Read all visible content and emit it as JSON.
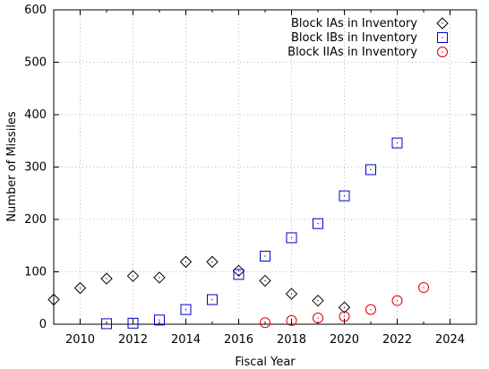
{
  "chart_data": {
    "type": "scatter",
    "title": "",
    "xlabel": "Fiscal Year",
    "ylabel": "Number of Missiles",
    "xlim": [
      2009,
      2025
    ],
    "ylim": [
      0,
      600
    ],
    "xticks": [
      2010,
      2012,
      2014,
      2016,
      2018,
      2020,
      2022,
      2024
    ],
    "yticks": [
      0,
      100,
      200,
      300,
      400,
      500,
      600
    ],
    "grid": true,
    "legend_position": "top-right",
    "series": [
      {
        "name": "Block IAs in Inventory",
        "marker": "diamond",
        "color": "#000000",
        "points": [
          {
            "x": 2009,
            "y": 47
          },
          {
            "x": 2010,
            "y": 69
          },
          {
            "x": 2011,
            "y": 87
          },
          {
            "x": 2012,
            "y": 92
          },
          {
            "x": 2013,
            "y": 89
          },
          {
            "x": 2014,
            "y": 119
          },
          {
            "x": 2015,
            "y": 119
          },
          {
            "x": 2016,
            "y": 102
          },
          {
            "x": 2017,
            "y": 83
          },
          {
            "x": 2018,
            "y": 58
          },
          {
            "x": 2019,
            "y": 45
          },
          {
            "x": 2020,
            "y": 32
          }
        ]
      },
      {
        "name": "Block IBs in Inventory",
        "marker": "square",
        "color": "#0000cc",
        "points": [
          {
            "x": 2011,
            "y": 1
          },
          {
            "x": 2012,
            "y": 2
          },
          {
            "x": 2013,
            "y": 8
          },
          {
            "x": 2014,
            "y": 28
          },
          {
            "x": 2015,
            "y": 47
          },
          {
            "x": 2016,
            "y": 95
          },
          {
            "x": 2017,
            "y": 130
          },
          {
            "x": 2018,
            "y": 165
          },
          {
            "x": 2019,
            "y": 192
          },
          {
            "x": 2020,
            "y": 245
          },
          {
            "x": 2021,
            "y": 295
          },
          {
            "x": 2022,
            "y": 346
          }
        ]
      },
      {
        "name": "Block IIAs in Inventory",
        "marker": "circle",
        "color": "#dd0000",
        "points": [
          {
            "x": 2017,
            "y": 3
          },
          {
            "x": 2018,
            "y": 7
          },
          {
            "x": 2019,
            "y": 12
          },
          {
            "x": 2020,
            "y": 15
          },
          {
            "x": 2021,
            "y": 28
          },
          {
            "x": 2022,
            "y": 45
          },
          {
            "x": 2023,
            "y": 70
          }
        ]
      }
    ]
  }
}
